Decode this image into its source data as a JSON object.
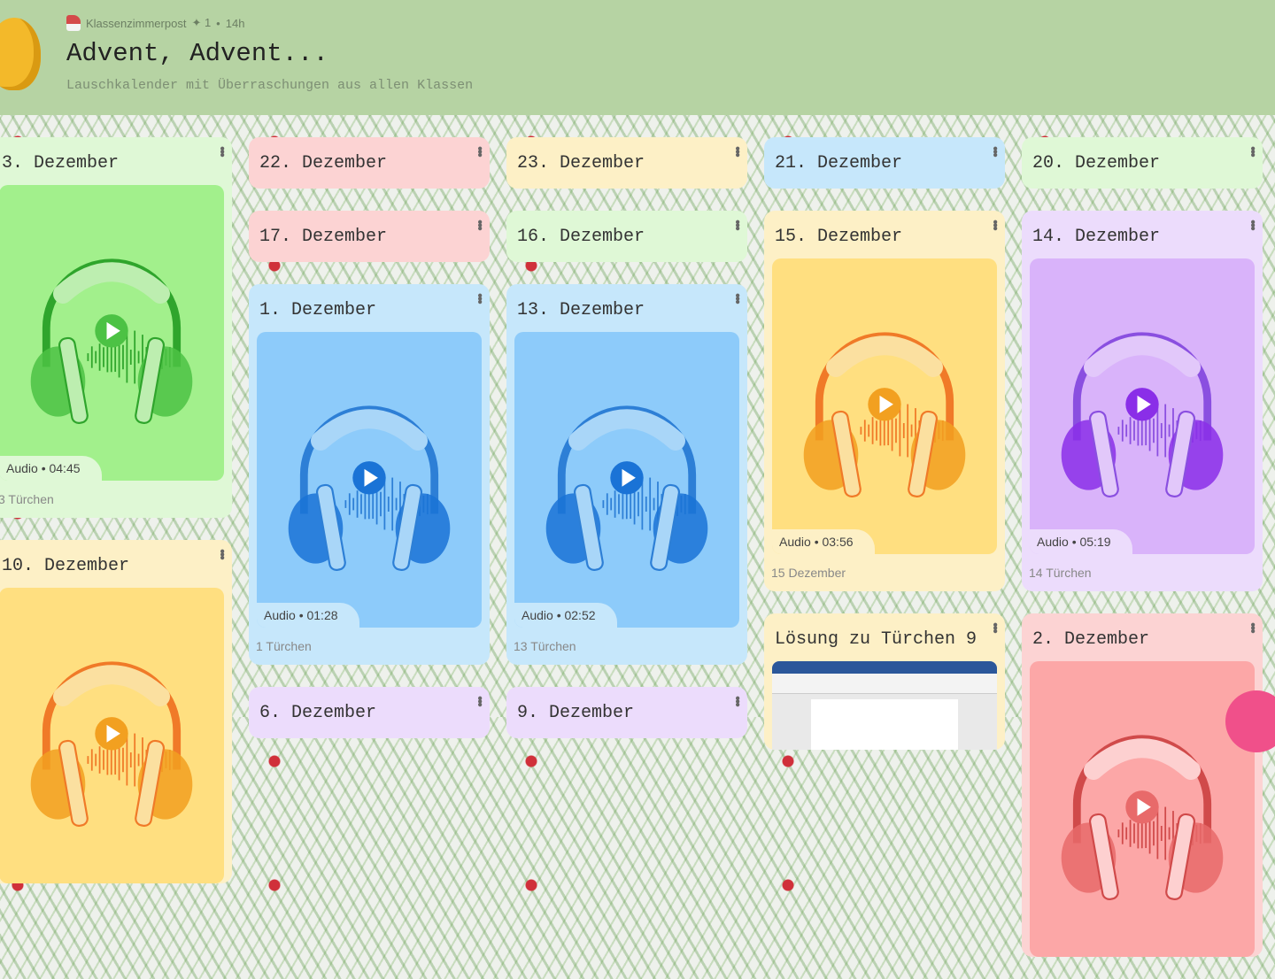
{
  "header": {
    "author": "Klassenzimmerpost",
    "likes": "✦ 1",
    "dot": "•",
    "age": "14h",
    "title": "Advent, Advent...",
    "subtitle": "Lauschkalender mit Überraschungen aus allen Klassen"
  },
  "themes": {
    "green": {
      "card": "#dff8d6",
      "media": "#a2f08c",
      "dark": "#2fa52c",
      "light": "#bdeeb0",
      "mid": "#4cc244"
    },
    "pink": {
      "card": "#fcd3d3",
      "media": "#fca7a7",
      "dark": "#d04a4a",
      "light": "#fdd0d0",
      "mid": "#e86a6a"
    },
    "yellow": {
      "card": "#fdf0c6",
      "media": "#ffdf80",
      "dark": "#f07a28",
      "light": "#fbe0a0",
      "mid": "#f2a020"
    },
    "blue": {
      "card": "#c6e7fb",
      "media": "#8dcbfa",
      "dark": "#2d7fd6",
      "light": "#a9d6f8",
      "mid": "#1a73d6"
    },
    "purple": {
      "card": "#ecdcfc",
      "media": "#d9b3fa",
      "dark": "#8a4fe0",
      "light": "#e2c8fa",
      "mid": "#8a2ee8"
    }
  },
  "columns": [
    {
      "cards": [
        {
          "title": "3. Dezember",
          "theme": "green",
          "type": "audio",
          "badge": "Audio • 04:45",
          "footer": "3 Türchen"
        },
        {
          "title": "10. Dezember",
          "theme": "yellow",
          "type": "audio",
          "badge": "",
          "footer": ""
        }
      ]
    },
    {
      "cards": [
        {
          "title": "22. Dezember",
          "theme": "pink",
          "type": "header"
        },
        {
          "title": "17. Dezember",
          "theme": "pink",
          "type": "header"
        },
        {
          "title": "1. Dezember",
          "theme": "blue",
          "type": "audio",
          "badge": "Audio • 01:28",
          "footer": "1 Türchen"
        },
        {
          "title": "6. Dezember",
          "theme": "purple",
          "type": "header"
        }
      ]
    },
    {
      "cards": [
        {
          "title": "23. Dezember",
          "theme": "yellow",
          "type": "header"
        },
        {
          "title": "16. Dezember",
          "theme": "green",
          "type": "header"
        },
        {
          "title": "13. Dezember",
          "theme": "blue",
          "type": "audio",
          "badge": "Audio • 02:52",
          "footer": "13 Türchen"
        },
        {
          "title": "9. Dezember",
          "theme": "purple",
          "type": "header"
        }
      ]
    },
    {
      "cards": [
        {
          "title": "21. Dezember",
          "theme": "blue",
          "type": "header"
        },
        {
          "title": "15. Dezember",
          "theme": "yellow",
          "type": "audio",
          "badge": "Audio • 03:56",
          "footer": "15 Dezember"
        },
        {
          "title": "Lösung zu Türchen 9",
          "theme": "yellow",
          "type": "doc"
        }
      ]
    },
    {
      "cards": [
        {
          "title": "20. Dezember",
          "theme": "green",
          "type": "header"
        },
        {
          "title": "14. Dezember",
          "theme": "purple",
          "type": "audio",
          "badge": "Audio • 05:19",
          "footer": "14 Türchen"
        },
        {
          "title": "2. Dezember",
          "theme": "pink",
          "type": "audio",
          "badge": "",
          "footer": ""
        }
      ]
    }
  ]
}
